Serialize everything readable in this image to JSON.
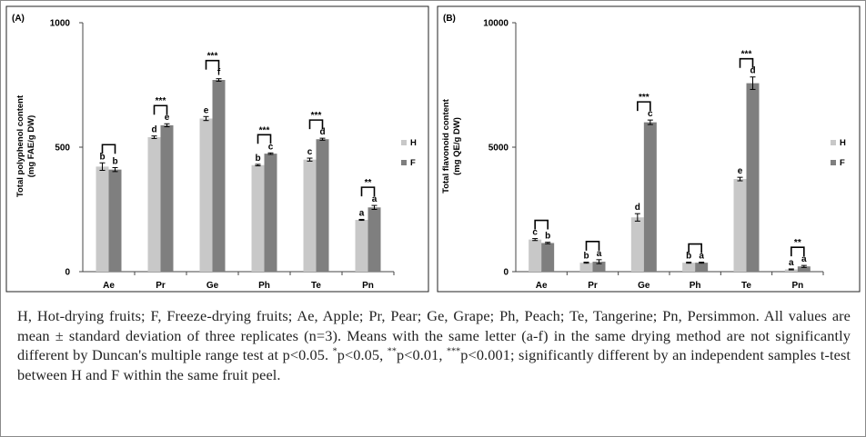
{
  "chart_data": [
    {
      "type": "bar",
      "panel": "(A)",
      "categories": [
        "Ae",
        "Pr",
        "Ge",
        "Ph",
        "Te",
        "Pn"
      ],
      "series": [
        {
          "name": "H",
          "values": [
            422,
            540,
            615,
            428,
            450,
            208
          ],
          "errors": [
            15,
            5,
            8,
            3,
            6,
            2
          ],
          "letters": [
            "b",
            "d",
            "e",
            "b",
            "c",
            "a"
          ]
        },
        {
          "name": "F",
          "values": [
            410,
            588,
            770,
            474,
            532,
            258
          ],
          "errors": [
            8,
            6,
            5,
            3,
            4,
            8
          ],
          "letters": [
            "b",
            "e",
            "f",
            "c",
            "d",
            "a"
          ]
        }
      ],
      "significance": [
        "",
        "***",
        "***",
        "***",
        "***",
        "**"
      ],
      "ylabel": "Total polyphenol content",
      "ylabel_unit": "(mg FAE/g DW)",
      "ylim": [
        0,
        1000
      ],
      "yticks": [
        0,
        500,
        1000
      ],
      "grid": false,
      "legend_position": "right"
    },
    {
      "type": "bar",
      "panel": "(B)",
      "categories": [
        "Ae",
        "Pr",
        "Ge",
        "Ph",
        "Te",
        "Pn"
      ],
      "series": [
        {
          "name": "H",
          "values": [
            1290,
            360,
            2180,
            360,
            3720,
            90
          ],
          "errors": [
            40,
            20,
            150,
            20,
            70,
            20
          ],
          "letters": [
            "c",
            "b",
            "d",
            "b",
            "e",
            "a"
          ]
        },
        {
          "name": "F",
          "values": [
            1150,
            400,
            6000,
            360,
            7570,
            210
          ],
          "errors": [
            30,
            80,
            90,
            20,
            250,
            40
          ],
          "letters": [
            "b",
            "a",
            "c",
            "a",
            "d",
            "a"
          ]
        }
      ],
      "significance": [
        "",
        "",
        "***",
        "",
        "***",
        "**"
      ],
      "ylabel": "Total flavonoid content",
      "ylabel_unit": "(mg QE/g DW)",
      "ylim": [
        0,
        10000
      ],
      "yticks": [
        0,
        5000,
        10000
      ],
      "grid": false,
      "legend_position": "right"
    }
  ],
  "colors": {
    "H": "#c8c8c8",
    "F": "#7f7f7f"
  },
  "caption": {
    "line1": "H, Hot-drying fruits; F, Freeze-drying fruits; Ae, Apple; Pr, Pear; Ge, Grape; Ph, Peach; Te, Tangerine; Pn, Persimmon. All values are mean ± standard deviation of three replicates (n=3). Means with the same letter (a-f) in the same drying method are not significantly different by Duncan's multiple range test at p<0.05. ",
    "s1": "*",
    "t1": "p<0.05, ",
    "s2": "**",
    "t2": "p<0.01, ",
    "s3": "***",
    "t3": "p<0.001; significantly different by an independent samples t-test between H and F within the same fruit peel."
  }
}
